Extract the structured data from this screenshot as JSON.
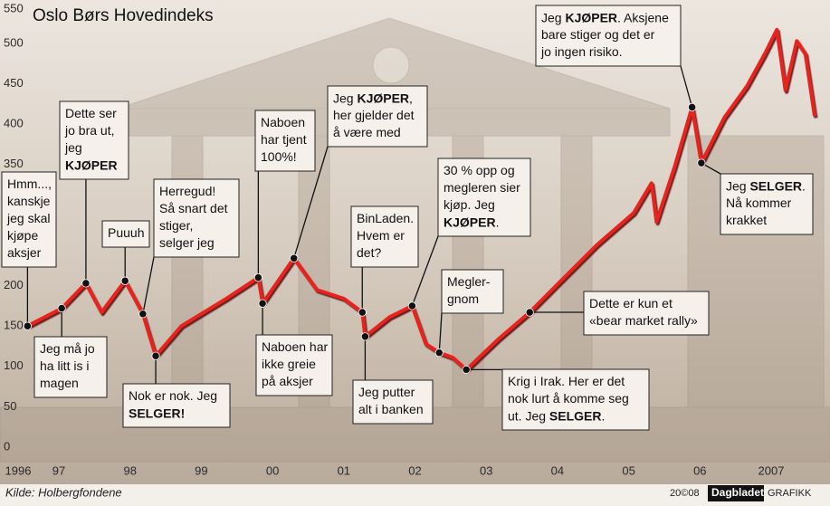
{
  "chart_data": {
    "type": "line",
    "title": "Oslo Børs Hovedindeks",
    "source": "Kilde: Holbergfondene",
    "credit": "20©08",
    "brand": "Dagbladet",
    "brand_suffix": "GRAFIKK",
    "color": "#e8231a",
    "x": [
      1996.56,
      1997.04,
      1997.38,
      1997.6,
      1997.93,
      1998.18,
      1998.36,
      1998.72,
      1999.35,
      1999.8,
      1999.86,
      2000.3,
      2000.62,
      2001.0,
      2001.26,
      2001.3,
      2001.64,
      2001.96,
      2002.15,
      2002.34,
      2002.53,
      2002.72,
      2003.16,
      2003.61,
      2004.05,
      2004.56,
      2005.07,
      2005.32,
      2005.39,
      2005.64,
      2005.89,
      2006.02,
      2006.34,
      2006.66,
      2006.91,
      2007.08,
      2007.2,
      2007.36,
      2007.48,
      2007.61
    ],
    "values": [
      150,
      172,
      203,
      167,
      206,
      165,
      113,
      150,
      184,
      210,
      178,
      234,
      195,
      184,
      167,
      137,
      161,
      175,
      128,
      117,
      111,
      96,
      133,
      167,
      206,
      251,
      290,
      327,
      279,
      346,
      421,
      352,
      408,
      447,
      487,
      517,
      442,
      503,
      487,
      410
    ],
    "xlim": [
      1996.555,
      2007.61
    ],
    "ylim": [
      0,
      550
    ],
    "yticks": [
      0,
      50,
      100,
      150,
      200,
      250,
      300,
      350,
      400,
      450,
      500,
      550
    ],
    "xticks": [
      {
        "value": 1996,
        "label": "1996"
      },
      {
        "value": 1997,
        "label": "97"
      },
      {
        "value": 1998,
        "label": "98"
      },
      {
        "value": 1999,
        "label": "99"
      },
      {
        "value": 2000,
        "label": "00"
      },
      {
        "value": 2001,
        "label": "01"
      },
      {
        "value": 2002,
        "label": "02"
      },
      {
        "value": 2003,
        "label": "03"
      },
      {
        "value": 2004,
        "label": "04"
      },
      {
        "value": 2005,
        "label": "05"
      },
      {
        "value": 2006,
        "label": "06"
      },
      {
        "value": 2007,
        "label": "2007"
      }
    ],
    "annotations": [
      {
        "point": 0,
        "lines": [
          "Hmm...,",
          "kanskje",
          "jeg skal",
          "kjøpe",
          "aksjer"
        ]
      },
      {
        "point": 1,
        "lines": [
          "Jeg må jo",
          "ha litt is i",
          "magen"
        ]
      },
      {
        "point": 2,
        "lines": [
          "Dette ser",
          "jo bra ut,",
          "jeg",
          [
            {
              "text": "KJØPER",
              "bold": true
            }
          ]
        ]
      },
      {
        "point": 4,
        "lines": [
          "Puuuh"
        ]
      },
      {
        "point": 5,
        "lines": [
          "Herregud!",
          "Så snart det",
          "stiger,",
          "selger jeg"
        ]
      },
      {
        "point": 6,
        "lines": [
          "Nok er nok. Jeg",
          [
            {
              "text": "SELGER!",
              "bold": true
            }
          ]
        ]
      },
      {
        "point": 9,
        "lines": [
          "Naboen",
          "har tjent",
          "100%!"
        ]
      },
      {
        "point": 10,
        "lines": [
          "Naboen har",
          "ikke greie",
          "på aksjer"
        ]
      },
      {
        "point": 11,
        "lines": [
          [
            {
              "text": "Jeg "
            },
            {
              "text": "KJØPER",
              "bold": true
            },
            {
              "text": ","
            }
          ],
          "her gjelder det",
          "å være med"
        ]
      },
      {
        "point": 14,
        "lines": [
          "BinLaden.",
          "Hvem er",
          "det?"
        ]
      },
      {
        "point": 15,
        "lines": [
          "Jeg putter",
          "alt i banken"
        ]
      },
      {
        "point": 17,
        "lines": [
          "30 % opp og",
          "megleren sier",
          "kjøp. Jeg",
          [
            {
              "text": "KJØPER",
              "bold": true
            },
            {
              "text": "."
            }
          ]
        ]
      },
      {
        "point": 19,
        "lines": [
          "Megler-",
          "gnom"
        ]
      },
      {
        "point": 21,
        "lines": [
          "Krig i Irak. Her er det",
          "nok lurt å komme seg",
          [
            {
              "text": "ut. Jeg "
            },
            {
              "text": "SELGER",
              "bold": true
            },
            {
              "text": "."
            }
          ]
        ]
      },
      {
        "point": 23,
        "lines": [
          "Dette er kun et",
          "«bear market rally»"
        ]
      },
      {
        "point": 30,
        "lines": [
          [
            {
              "text": "Jeg "
            },
            {
              "text": "KJØPER",
              "bold": true
            },
            {
              "text": ". Aksjene"
            }
          ],
          "bare stiger og det er",
          "jo ingen risiko."
        ]
      },
      {
        "point": 31,
        "lines": [
          [
            {
              "text": "Jeg "
            },
            {
              "text": "SELGER",
              "bold": true
            },
            {
              "text": "."
            }
          ],
          "Nå kommer",
          "krakket"
        ]
      }
    ]
  }
}
